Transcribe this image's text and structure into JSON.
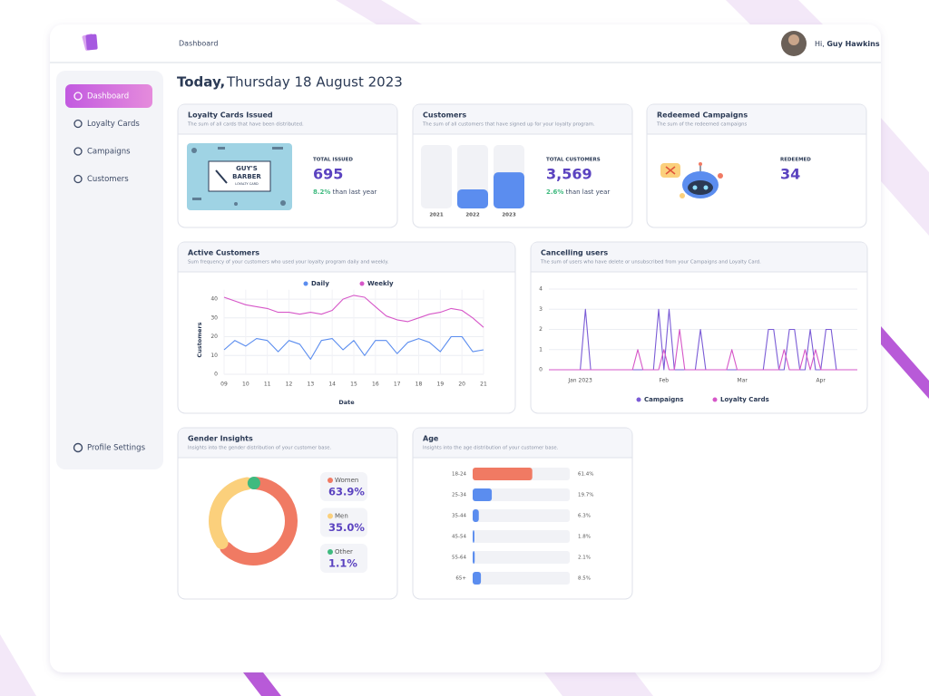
{
  "header": {
    "title": "Dashboard",
    "greeting": "Hi,",
    "user": "Guy Hawkins"
  },
  "nav": [
    "Dashboard",
    "Loyalty Cards",
    "Campaigns",
    "Customers"
  ],
  "settings": "Profile Settings",
  "today": {
    "label": "Today,",
    "date": "Thursday 18 August 2023"
  },
  "loyalty": {
    "title": "Loyalty Cards Issued",
    "subtitle": "The sum of all cards that have been distributed.",
    "card_text": [
      "GUY'S",
      "BARBER",
      "LOYALTY CARD"
    ],
    "stat_label": "TOTAL ISSUED",
    "stat": "695",
    "change": "8.2%",
    "change_text": "than last year"
  },
  "customers": {
    "title": "Customers",
    "subtitle": "The sum of all customers that have signed up for your loyalty program.",
    "stat_label": "TOTAL CUSTOMERS",
    "stat": "3,569",
    "change": "2.6%",
    "change_text": "than last year",
    "chart": {
      "type": "bar",
      "categories": [
        "2021",
        "2022",
        "2023"
      ],
      "values": [
        0,
        30,
        57
      ],
      "color": "#5b8def",
      "ylim": [
        0,
        100
      ]
    }
  },
  "redeemed": {
    "title": "Redeemed Campaigns",
    "subtitle": "The sum of the redeemed campaigns",
    "stat_label": "REDEEMED",
    "stat": "34"
  },
  "active": {
    "title": "Active Customers",
    "subtitle": "Sum frequency of your customers who used your loyalty program daily and weekly.",
    "chart": {
      "type": "line",
      "xlabel": "Date",
      "ylabel": "Customers",
      "x": [
        9,
        9.5,
        10,
        10.5,
        11,
        11.5,
        12,
        12.5,
        13,
        13.5,
        14,
        14.5,
        15,
        15.5,
        16,
        16.5,
        17,
        17.5,
        18,
        18.5,
        19,
        19.5,
        20,
        20.5,
        21
      ],
      "series": [
        {
          "name": "Daily",
          "color": "#5b8def",
          "values": [
            13,
            18,
            15,
            19,
            18,
            12,
            18,
            16,
            8,
            18,
            19,
            13,
            18,
            10,
            18,
            18,
            11,
            17,
            19,
            17,
            12,
            20,
            20,
            12,
            13
          ]
        },
        {
          "name": "Weekly",
          "color": "#d657c8",
          "values": [
            41,
            39,
            37,
            36,
            35,
            33,
            33,
            32,
            33,
            32,
            34,
            40,
            42,
            41,
            36,
            31,
            29,
            28,
            30,
            32,
            33,
            35,
            34,
            30,
            25
          ]
        }
      ],
      "xlim": [
        9,
        21
      ],
      "ylim": [
        0,
        45
      ],
      "xticks": [
        {
          "value": 9,
          "label": "09"
        },
        10,
        11,
        12,
        13,
        14,
        15,
        16,
        17,
        18,
        19,
        20,
        21
      ],
      "yticks": [
        0,
        10,
        20,
        30,
        40
      ],
      "grid": true
    }
  },
  "cancelling": {
    "title": "Cancelling users",
    "subtitle": "The sum of users who have delete or unsubscribed from your Campaigns and Loyalty Card.",
    "chart": {
      "type": "line",
      "categories": [
        null,
        null,
        null,
        null,
        null,
        null,
        "Jan 2023",
        null,
        null,
        null,
        null,
        null,
        null,
        null,
        null,
        null,
        null,
        null,
        null,
        null,
        null,
        null,
        "Feb",
        null,
        null,
        null,
        null,
        null,
        null,
        null,
        null,
        null,
        null,
        null,
        null,
        null,
        null,
        "Mar",
        null,
        null,
        null,
        null,
        null,
        null,
        null,
        null,
        null,
        null,
        null,
        null,
        null,
        null,
        "Apr",
        null,
        null,
        null,
        null,
        null,
        null,
        null
      ],
      "series": [
        {
          "name": "Campaigns",
          "color": "#7b5cd6",
          "values": [
            0,
            0,
            0,
            0,
            0,
            0,
            0,
            3,
            0,
            0,
            0,
            0,
            0,
            0,
            0,
            0,
            0,
            0,
            0,
            0,
            0,
            3,
            0,
            3,
            0,
            0,
            0,
            0,
            0,
            2,
            0,
            0,
            0,
            0,
            0,
            0,
            0,
            0,
            0,
            0,
            0,
            0,
            2,
            2,
            0,
            0,
            2,
            2,
            0,
            0,
            2,
            0,
            0,
            2,
            2,
            0,
            0,
            0,
            0,
            0
          ]
        },
        {
          "name": "Loyalty Cards",
          "color": "#d657c8",
          "values": [
            0,
            0,
            0,
            0,
            0,
            0,
            0,
            0,
            0,
            0,
            0,
            0,
            0,
            0,
            0,
            0,
            0,
            1,
            0,
            0,
            0,
            0,
            1,
            0,
            0,
            2,
            0,
            0,
            0,
            0,
            0,
            0,
            0,
            0,
            0,
            1,
            0,
            0,
            0,
            0,
            0,
            0,
            0,
            0,
            0,
            1,
            0,
            0,
            0,
            1,
            0,
            1,
            0,
            0,
            0,
            0,
            0,
            0,
            0,
            0
          ]
        }
      ],
      "ylim": [
        0,
        4
      ],
      "yticks": [
        0,
        1,
        2,
        3,
        4
      ],
      "grid": true
    }
  },
  "gender": {
    "title": "Gender Insights",
    "subtitle": "Insights into the gender distribution of your customer base.",
    "chart": {
      "type": "pie",
      "categories": [
        "Women",
        "Men",
        "Other"
      ],
      "values": [
        63.9,
        35,
        1.1
      ],
      "value_labels": [
        "63.9%",
        "35.0%",
        "1.1%"
      ],
      "colors": [
        "#f07a63",
        "#fbd07c",
        "#3fba7f"
      ]
    }
  },
  "age": {
    "title": "Age",
    "subtitle": "Insights into the age distribution of your customer base.",
    "chart": {
      "type": "hbar",
      "categories": [
        "18-24",
        "25-34",
        "35-44",
        "45-54",
        "55-64",
        "65+"
      ],
      "values": [
        61.4,
        19.7,
        6.3,
        1.8,
        2.1,
        8.5
      ],
      "value_labels": [
        "61.4%",
        "19.7%",
        "6.3%",
        "1.8%",
        "2.1%",
        "8.5%"
      ],
      "colors": [
        "#f07a63",
        "#5b8def",
        "#5b8def",
        "#5b8def",
        "#5b8def",
        "#5b8def"
      ],
      "xlim": [
        0,
        100
      ]
    }
  }
}
